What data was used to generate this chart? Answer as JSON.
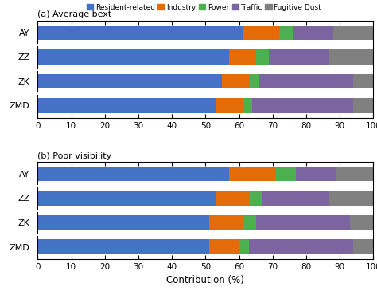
{
  "panel_a_title": "(a) Average bext",
  "panel_b_title": "(b) Poor visibility",
  "categories": [
    "AY",
    "ZZ",
    "ZK",
    "ZMD"
  ],
  "xlabel": "Contribution (%)",
  "xlim": [
    0,
    100
  ],
  "xticks": [
    0,
    10,
    20,
    30,
    40,
    50,
    60,
    70,
    80,
    90,
    100
  ],
  "legend_labels": [
    "Resident-related",
    "Industry",
    "Power",
    "Traffic",
    "Fugitive Dust"
  ],
  "colors": [
    "#4472C4",
    "#E36C09",
    "#4CAF50",
    "#7B64A0",
    "#808080"
  ],
  "panel_a": {
    "AY": [
      61,
      11,
      4,
      12,
      12
    ],
    "ZZ": [
      57,
      8,
      4,
      18,
      13
    ],
    "ZK": [
      55,
      8,
      3,
      28,
      6
    ],
    "ZMD": [
      53,
      8,
      3,
      30,
      6
    ]
  },
  "panel_b": {
    "AY": [
      57,
      14,
      6,
      12,
      11
    ],
    "ZZ": [
      53,
      10,
      4,
      20,
      13
    ],
    "ZK": [
      51,
      10,
      4,
      28,
      7
    ],
    "ZMD": [
      51,
      9,
      3,
      31,
      6
    ]
  }
}
